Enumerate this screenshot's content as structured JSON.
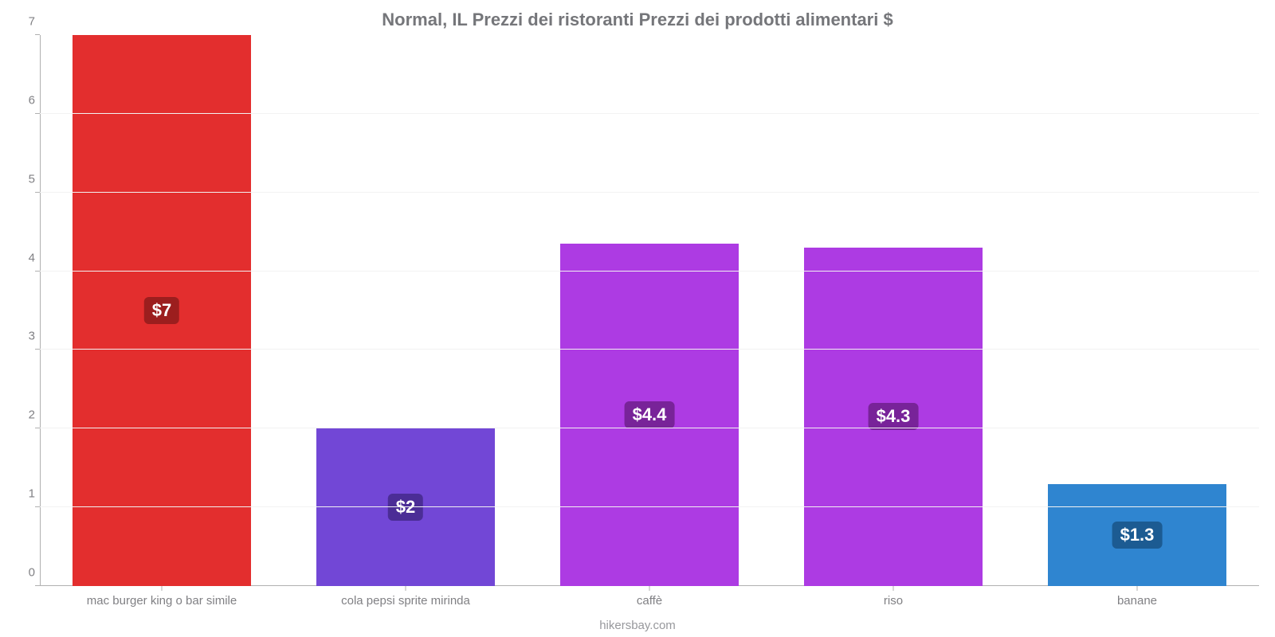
{
  "chart": {
    "type": "bar",
    "title": "Normal, IL Prezzi dei ristoranti Prezzi dei prodotti alimentari $",
    "title_fontsize": 22,
    "title_color": "#75767a",
    "background_color": "#ffffff",
    "grid_color": "#f2f2f2",
    "axis_color": "#b0b0b0",
    "tick_label_color": "#808084",
    "tick_fontsize": 15,
    "x_tick_fontsize": 15,
    "value_label_fontsize": 22,
    "ylim": [
      0,
      7
    ],
    "ytick_step": 1,
    "bar_width": 0.73,
    "categories": [
      "mac burger king o bar simile",
      "cola pepsi sprite mirinda",
      "caffè",
      "riso",
      "banane"
    ],
    "values": [
      7,
      2,
      4.35,
      4.3,
      1.3
    ],
    "value_labels": [
      "$7",
      "$2",
      "$4.4",
      "$4.3",
      "$1.3"
    ],
    "bar_colors": [
      "#e32e2e",
      "#7247d6",
      "#ad3be3",
      "#ad3be3",
      "#2f85d0"
    ],
    "badge_colors": [
      "#9c1e1e",
      "#4b2d96",
      "#782399",
      "#782399",
      "#1c5b92"
    ],
    "credit": "hikersbay.com",
    "credit_color": "#97989c",
    "credit_fontsize": 15
  }
}
